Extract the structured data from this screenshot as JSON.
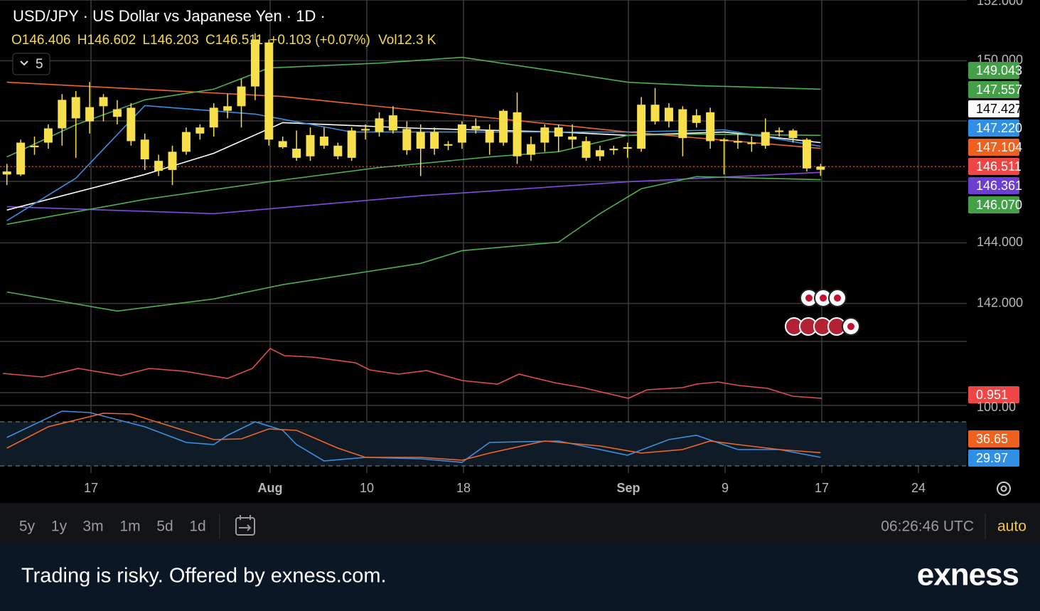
{
  "header": {
    "title": "USD/JPY · US Dollar vs Japanese Yen · 1D ·",
    "ohlc": [
      [
        "O",
        "146.406"
      ],
      [
        "H",
        "146.602"
      ],
      [
        "L",
        "146.203"
      ],
      [
        "C",
        "146.511"
      ]
    ],
    "change": "+0.103 (+0.07%)",
    "vol_label": "Vol",
    "vol": "12.3 K",
    "interval_button": "5"
  },
  "chart_data": [
    {
      "type": "candlestick",
      "color": "#f7e04b",
      "ylim": [
        140.75,
        152
      ],
      "xlim": [
        -0.5,
        69.6
      ],
      "yticks": [
        {
          "value": 142,
          "label": "142.000"
        },
        {
          "value": 144,
          "label": "144.000"
        },
        {
          "value": 150,
          "label": "150.000"
        },
        {
          "value": 152,
          "label": "152.000"
        }
      ],
      "x_labels": [
        "17",
        "Aug",
        "10",
        "18",
        "Sep",
        "9",
        "17",
        "24"
      ],
      "last_price": 146.511,
      "candles": [
        [
          146.25,
          146.6,
          145.9,
          146.35
        ],
        [
          146.25,
          147.4,
          146.2,
          147.3
        ],
        [
          147.15,
          147.5,
          146.9,
          147.2
        ],
        [
          147.3,
          147.9,
          147.1,
          147.77
        ],
        [
          147.77,
          148.9,
          147.2,
          148.71
        ],
        [
          148.8,
          149.0,
          146.8,
          148.1
        ],
        [
          148.0,
          149.3,
          147.6,
          148.47
        ],
        [
          148.5,
          148.9,
          148.0,
          148.8
        ],
        [
          148.4,
          148.7,
          147.9,
          148.15
        ],
        [
          148.45,
          148.6,
          147.2,
          147.35
        ],
        [
          147.4,
          147.6,
          146.4,
          146.75
        ],
        [
          146.7,
          146.9,
          146.2,
          146.37
        ],
        [
          146.4,
          147.2,
          145.9,
          147.0
        ],
        [
          147.0,
          147.8,
          146.9,
          147.65
        ],
        [
          147.6,
          147.9,
          147.4,
          147.8
        ],
        [
          147.8,
          148.6,
          147.5,
          148.45
        ],
        [
          148.35,
          148.9,
          148.1,
          148.5
        ],
        [
          148.5,
          149.4,
          147.8,
          149.15
        ],
        [
          149.15,
          150.9,
          148.7,
          150.7
        ],
        [
          150.6,
          150.7,
          147.2,
          147.4
        ],
        [
          147.35,
          147.5,
          147.1,
          147.15
        ],
        [
          147.1,
          147.7,
          146.7,
          146.8
        ],
        [
          146.85,
          147.8,
          146.7,
          147.55
        ],
        [
          147.5,
          147.8,
          147.1,
          147.2
        ],
        [
          147.2,
          147.3,
          146.75,
          146.85
        ],
        [
          146.8,
          147.8,
          146.7,
          147.7
        ],
        [
          147.7,
          147.9,
          147.4,
          147.75
        ],
        [
          147.65,
          148.3,
          147.5,
          148.1
        ],
        [
          148.2,
          148.5,
          147.6,
          147.7
        ],
        [
          147.75,
          148.0,
          146.9,
          147.05
        ],
        [
          147.1,
          147.9,
          146.2,
          147.65
        ],
        [
          147.65,
          147.8,
          146.9,
          147.1
        ],
        [
          147.2,
          147.35,
          147.05,
          147.25
        ],
        [
          147.3,
          148.0,
          147.1,
          147.9
        ],
        [
          147.85,
          148.1,
          147.6,
          147.75
        ],
        [
          147.7,
          147.9,
          146.9,
          147.3
        ],
        [
          147.3,
          148.4,
          147.2,
          148.35
        ],
        [
          148.3,
          148.95,
          146.6,
          146.85
        ],
        [
          146.9,
          147.5,
          146.7,
          147.25
        ],
        [
          147.3,
          147.9,
          147.0,
          147.8
        ],
        [
          147.8,
          147.9,
          147.0,
          147.5
        ],
        [
          147.5,
          147.9,
          147.1,
          147.4
        ],
        [
          147.35,
          147.5,
          146.7,
          146.8
        ],
        [
          146.85,
          147.2,
          146.7,
          147.05
        ],
        [
          147.05,
          147.2,
          146.9,
          147.1
        ],
        [
          147.1,
          147.3,
          146.8,
          147.15
        ],
        [
          147.1,
          148.8,
          147.0,
          148.55
        ],
        [
          148.55,
          149.1,
          147.9,
          148.0
        ],
        [
          148.0,
          148.6,
          147.8,
          148.45
        ],
        [
          148.4,
          148.5,
          146.85,
          147.45
        ],
        [
          147.95,
          148.4,
          147.8,
          148.2
        ],
        [
          148.3,
          148.45,
          147.1,
          147.35
        ],
        [
          147.4,
          147.45,
          146.25,
          147.35
        ],
        [
          147.35,
          147.6,
          147.1,
          147.3
        ],
        [
          147.3,
          147.5,
          147.0,
          147.28
        ],
        [
          147.2,
          148.1,
          147.1,
          147.65
        ],
        [
          147.65,
          147.8,
          147.5,
          147.7
        ],
        [
          147.7,
          147.75,
          147.3,
          147.45
        ],
        [
          147.4,
          147.45,
          146.35,
          146.45
        ],
        [
          146.406,
          146.602,
          146.203,
          146.511
        ]
      ],
      "series": [
        {
          "color": "#f0652a",
          "x": [
            0,
            20,
            35,
            45,
            59
          ],
          "values": [
            149.29,
            148.82,
            148.12,
            147.65,
            147.11
          ]
        },
        {
          "color": "#7e4be0",
          "x": [
            0,
            15,
            30,
            45,
            59
          ],
          "values": [
            145.19,
            144.96,
            145.55,
            146.01,
            146.32
          ]
        },
        {
          "color": "#ffffff",
          "x": [
            0,
            10,
            15,
            20,
            30,
            40,
            45,
            52,
            59
          ],
          "values": [
            145.08,
            146.25,
            146.95,
            147.96,
            147.77,
            147.65,
            147.54,
            147.65,
            147.3
          ]
        },
        {
          "color": "#3b8fe0",
          "x": [
            0,
            5,
            10,
            18,
            25,
            35,
            45,
            52,
            59
          ],
          "values": [
            144.73,
            146.13,
            148.52,
            148.24,
            147.65,
            147.65,
            147.65,
            147.72,
            147.18
          ]
        },
        {
          "color": "#4caf50",
          "x": [
            0,
            5,
            10,
            15,
            19,
            27,
            33,
            40,
            45,
            50,
            59
          ],
          "values": [
            146.83,
            147.89,
            148.71,
            149.06,
            149.76,
            149.92,
            150.11,
            149.64,
            149.29,
            149.18,
            149.06
          ]
        },
        {
          "color": "#4caf50",
          "x": [
            0,
            10,
            19,
            27,
            35,
            40,
            45,
            50,
            59
          ],
          "values": [
            144.61,
            145.43,
            146.01,
            146.48,
            146.83,
            147.0,
            147.54,
            147.58,
            147.54
          ]
        },
        {
          "color": "#4caf50",
          "x": [
            0,
            8,
            15,
            20,
            30,
            33,
            40,
            43,
            46,
            50,
            59
          ],
          "values": [
            142.38,
            141.75,
            142.15,
            142.62,
            143.32,
            143.74,
            144.02,
            144.96,
            145.78,
            146.18,
            146.08
          ]
        }
      ],
      "price_badges": [
        {
          "text": "149.043",
          "color": "#43a047"
        },
        {
          "text": "147.557",
          "color": "#43a047"
        },
        {
          "text": "147.427",
          "color": "#ffffff"
        },
        {
          "text": "147.220",
          "color": "#2f8fe6"
        },
        {
          "text": "147.104",
          "color": "#f0601e"
        },
        {
          "text": "146.511",
          "color": "#f04545"
        },
        {
          "text": "146.361",
          "color": "#6a3fd1"
        },
        {
          "text": "146.070",
          "color": "#43a047"
        }
      ]
    },
    {
      "type": "line",
      "ylim": [
        0,
        100
      ],
      "xlim": [
        -0.5,
        69.6
      ],
      "yticks": [
        {
          "value": 100,
          "label": "100.00"
        }
      ],
      "series": [
        {
          "color": "#3b8fe0",
          "x": [
            0,
            4,
            6,
            10,
            13,
            15,
            16,
            18,
            20,
            21,
            23,
            26,
            30,
            33,
            35,
            40,
            45,
            48,
            50,
            53,
            56,
            59
          ],
          "values": [
            58,
            95,
            93,
            73,
            51,
            48,
            61,
            80,
            68,
            48,
            25,
            30,
            28,
            23,
            51,
            53,
            33,
            55,
            61,
            41,
            41,
            29.97
          ]
        },
        {
          "color": "#f0652a",
          "x": [
            0,
            3,
            7,
            9,
            12,
            15,
            17,
            19,
            21,
            24,
            26,
            30,
            33,
            35,
            39,
            43,
            46,
            49,
            51,
            53,
            56,
            59
          ],
          "values": [
            43,
            73,
            92,
            91,
            73,
            55,
            56,
            70,
            68,
            43,
            30,
            30,
            26,
            36,
            53,
            46,
            36,
            41,
            53,
            48,
            41,
            36.65
          ]
        }
      ],
      "badges": [
        {
          "text": "36.65",
          "color": "#f0601e"
        },
        {
          "text": "29.97",
          "color": "#2f8fe6"
        }
      ]
    }
  ],
  "red_pane": {
    "badge": "0.951"
  },
  "toolbar": {
    "ranges": [
      "5y",
      "1y",
      "3m",
      "1m",
      "5d",
      "1d"
    ],
    "time": "06:26:46 UTC",
    "auto": "auto"
  },
  "banner": {
    "text": "Trading is risky. Offered by exness.com.",
    "logo": "exness"
  }
}
